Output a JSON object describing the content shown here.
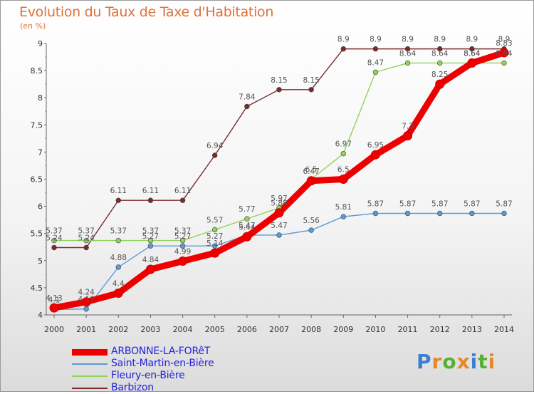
{
  "header": {
    "title": "Evolution du Taux de Taxe d'Habitation",
    "subtitle": "(en %)"
  },
  "logo": {
    "text": "Proxiti",
    "colors": [
      "#3a7fd0",
      "#e8862a",
      "#58b030",
      "#e8862a",
      "#3a7fd0",
      "#58b030",
      "#e8862a"
    ]
  },
  "chart_data": {
    "type": "line",
    "x": [
      2000,
      2001,
      2002,
      2003,
      2004,
      2005,
      2006,
      2007,
      2008,
      2009,
      2010,
      2011,
      2012,
      2013,
      2014
    ],
    "ylim": [
      4,
      9
    ],
    "yticks": [
      "4",
      "4.5",
      "5",
      "5.5",
      "6",
      "6.5",
      "7",
      "7.5",
      "8",
      "8.5",
      "9"
    ],
    "xticks": [
      "2000",
      "2001",
      "2002",
      "2003",
      "2004",
      "2005",
      "2006",
      "2007",
      "2008",
      "2009",
      "2010",
      "2011",
      "2012",
      "2013",
      "2014"
    ],
    "grid": false,
    "legend_placement": "bottom-left",
    "series": [
      {
        "name": "ARBONNE-LA-FORêT",
        "color": "#ee0000",
        "values": [
          4.13,
          4.24,
          4.4,
          4.84,
          4.99,
          5.14,
          5.44,
          5.88,
          6.47,
          6.5,
          6.95,
          7.3,
          8.25,
          8.64,
          8.83
        ],
        "labels": [
          "4.13",
          "4.24",
          "4.4",
          "4.84",
          "4.99",
          "5.14",
          "5.44",
          "5.88",
          "6.47",
          "6.5",
          "6.95",
          "7.3",
          "8.25",
          "8.64",
          "8.83"
        ]
      },
      {
        "name": "Saint-Martin-en-Bière",
        "color": "#5b9bd5",
        "values": [
          4.1,
          4.11,
          4.88,
          5.27,
          5.27,
          5.27,
          5.47,
          5.47,
          5.56,
          5.81,
          5.87,
          5.87,
          5.87,
          5.87,
          5.87
        ],
        "labels": [
          "4.1",
          "4.11",
          "4.88",
          "5.27",
          "5.27",
          "5.27",
          "5.47",
          "5.47",
          "5.56",
          "5.81",
          "5.87",
          "5.87",
          "5.87",
          "5.87",
          "5.87"
        ]
      },
      {
        "name": "Fleury-en-Bière",
        "color": "#8fd35a",
        "values": [
          5.37,
          5.37,
          5.37,
          5.37,
          5.37,
          5.57,
          5.77,
          5.97,
          6.5,
          6.97,
          8.47,
          8.64,
          8.64,
          8.64,
          8.64
        ],
        "labels": [
          "5.37",
          "5.37",
          "5.37",
          "5.37",
          "5.37",
          "5.57",
          "5.77",
          "5.97",
          "6.5",
          "6.97",
          "8.47",
          "8.64",
          "8.64",
          "8.64",
          "8.64"
        ]
      },
      {
        "name": "Barbizon",
        "color": "#7b2a2a",
        "values": [
          5.24,
          5.24,
          6.11,
          6.11,
          6.11,
          6.94,
          7.84,
          8.15,
          8.15,
          8.9,
          8.9,
          8.9,
          8.9,
          8.9,
          8.9
        ],
        "labels": [
          "5.24",
          "5.24",
          "6.11",
          "6.11",
          "6.11",
          "6.94",
          "7.84",
          "8.15",
          "8.15",
          "8.9",
          "8.9",
          "8.9",
          "8.9",
          "8.9",
          "8.9"
        ]
      }
    ]
  }
}
